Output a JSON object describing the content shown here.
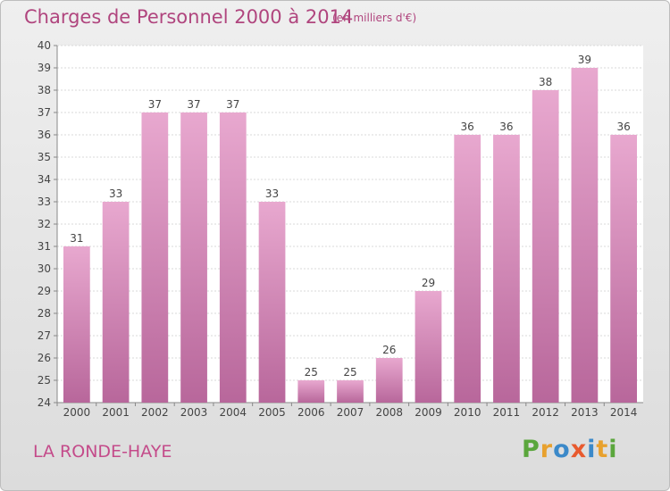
{
  "title": "Charges de Personnel 2000 à 2014",
  "subtitle": "(en milliers d'€)",
  "commune": "LA RONDE-HAYE",
  "logo": "Proxiti",
  "colors": {
    "bar": "#d98cb8",
    "bar_dark": "#b8669a",
    "title": "#b0457e",
    "axis": "#888888"
  },
  "chart_data": {
    "type": "bar",
    "title": "Charges de Personnel 2000 à 2014",
    "subtitle": "(en milliers d'€)",
    "categories": [
      "2000",
      "2001",
      "2002",
      "2003",
      "2004",
      "2005",
      "2006",
      "2007",
      "2008",
      "2009",
      "2010",
      "2011",
      "2012",
      "2013",
      "2014"
    ],
    "values": [
      31,
      33,
      37,
      37,
      37,
      33,
      25,
      25,
      26,
      29,
      36,
      36,
      38,
      39,
      36
    ],
    "ylim": [
      24,
      40
    ],
    "yticks": [
      24,
      25,
      26,
      27,
      28,
      29,
      30,
      31,
      32,
      33,
      34,
      35,
      36,
      37,
      38,
      39,
      40
    ],
    "grid": true,
    "legend": "none"
  }
}
